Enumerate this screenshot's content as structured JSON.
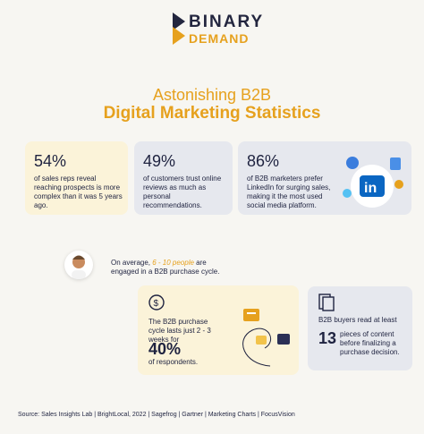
{
  "logo": {
    "line1": "BINARY",
    "line2": "DEMAND"
  },
  "title": {
    "line1": "Astonishing B2B",
    "line2": "Digital Marketing Statistics"
  },
  "stats": [
    {
      "value": "54%",
      "text": "of sales reps reveal reaching prospects is more complex than it was 5 years ago."
    },
    {
      "value": "49%",
      "text": "of customers trust online reviews as much as personal recommendations."
    },
    {
      "value": "86%",
      "text": "of B2B marketers prefer LinkedIn for surging sales, making it the most used social media platform."
    }
  ],
  "purchase": {
    "prefix": "On average, ",
    "highlight": "6 - 10 people",
    "suffix": " are engaged in a B2B purchase cycle."
  },
  "cycle": {
    "text": "The B2B purchase cycle lasts just 2 - 3 weeks for",
    "value": "40%",
    "suffix": "of respondents."
  },
  "content": {
    "text": "B2B buyers read at least",
    "value": "13",
    "suffix": "pieces of content before finalizing a purchase decision."
  },
  "footer": "Source: Sales Insights Lab | BrightLocal, 2022 | Sagefrog | Gartner | Marketing Charts | FocusVision",
  "colors": {
    "accent": "#e6a11e",
    "navy": "#1f2340",
    "cream": "#fbf3d9",
    "gray": "#e6e8ee"
  },
  "icons": [
    "binary-demand-logo-icon",
    "linkedin-icon",
    "dollar-icon",
    "document-icon",
    "chart-icon",
    "person-avatar"
  ]
}
